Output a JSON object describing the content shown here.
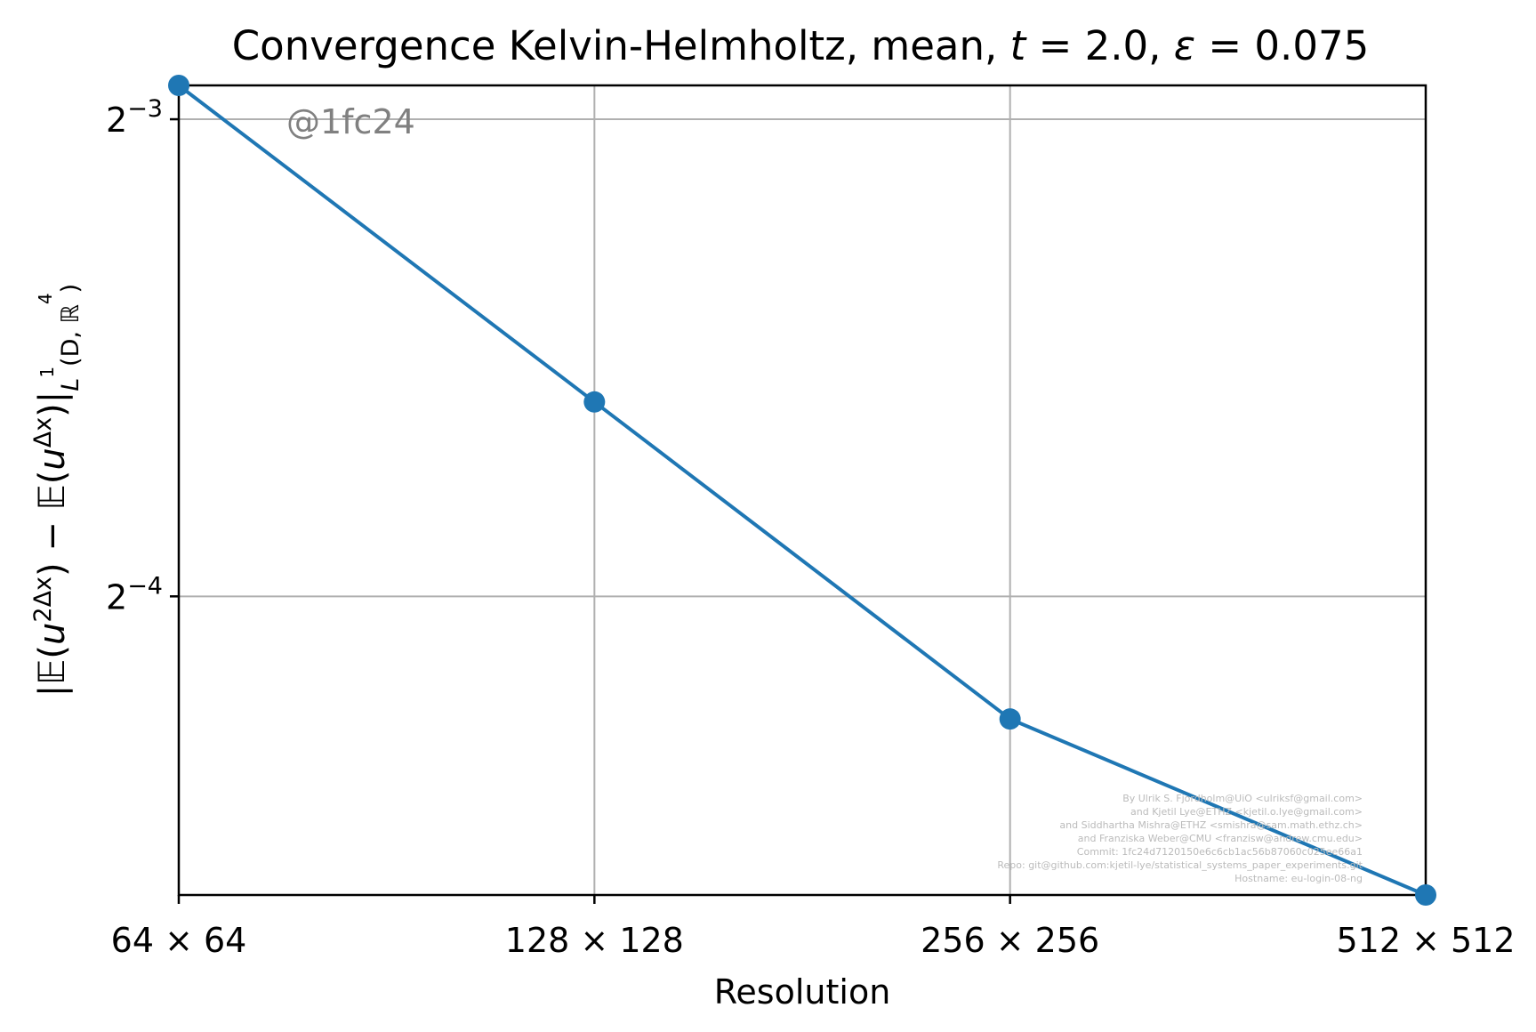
{
  "chart_data": {
    "type": "line",
    "title": "Convergence Kelvin-Helmholtz, mean, t = 2.0, ε = 0.075",
    "title_parts": {
      "prefix": "Convergence Kelvin-Helmholtz, mean, ",
      "t_var": "t",
      "t_value": " = 2.0, ",
      "eps_var": "ε",
      "eps_value": " = 0.075"
    },
    "xlabel": "Resolution",
    "ylabel": "|𝔼(u^{2Δx}) − 𝔼(u^{Δx})|_{L^1(D, ℝ^4)}",
    "ylabel_parts": {
      "open": "|𝔼(",
      "u1": "u",
      "sup1": "2Δx",
      "mid": ") − 𝔼(",
      "u2": "u",
      "sup2": "Δx",
      "close": ")|",
      "sub": "L",
      "sub_sup": "1",
      "sub_rest": "(D, ℝ",
      "sub_sup2": "4",
      "sub_end": ")"
    },
    "x_scale": "log2",
    "y_scale": "log2",
    "categories": [
      "64 × 64",
      "128 × 128",
      "256 × 256",
      "512 × 512"
    ],
    "x": [
      64,
      128,
      256,
      512
    ],
    "series": [
      {
        "values": [
          0.1313,
          0.0829,
          0.0523,
          0.0405
        ]
      }
    ],
    "y_ticks": [
      {
        "value": 0.125,
        "base": "2",
        "exponent": "−3"
      },
      {
        "value": 0.0625,
        "base": "2",
        "exponent": "−4"
      }
    ],
    "ylim": [
      0.0405,
      0.1313
    ],
    "grid": true,
    "legend": "none",
    "annotation": "@1fc24",
    "credits": [
      "By Ulrik S. Fjordholm@UiO <ulriksf@gmail.com>",
      "and Kjetil Lye@ETHZ <kjetil.o.lye@gmail.com>",
      "and Siddhartha Mishra@ETHZ <smishra@sam.math.ethz.ch>",
      "and Franziska Weber@CMU <franzisw@andrew.cmu.edu>",
      "Commit: 1fc24d7120150e6c6cb1ac56b87060c025ee66a1",
      "Repo: git@github.com:kjetil-lye/statistical_systems_paper_experiments.git",
      "Hostname: eu-login-08-ng"
    ],
    "colors": {
      "line": "#1f77b4",
      "grid": "#b0b0b0",
      "annotation": "#808080",
      "credits": "#bbbbbb"
    }
  }
}
